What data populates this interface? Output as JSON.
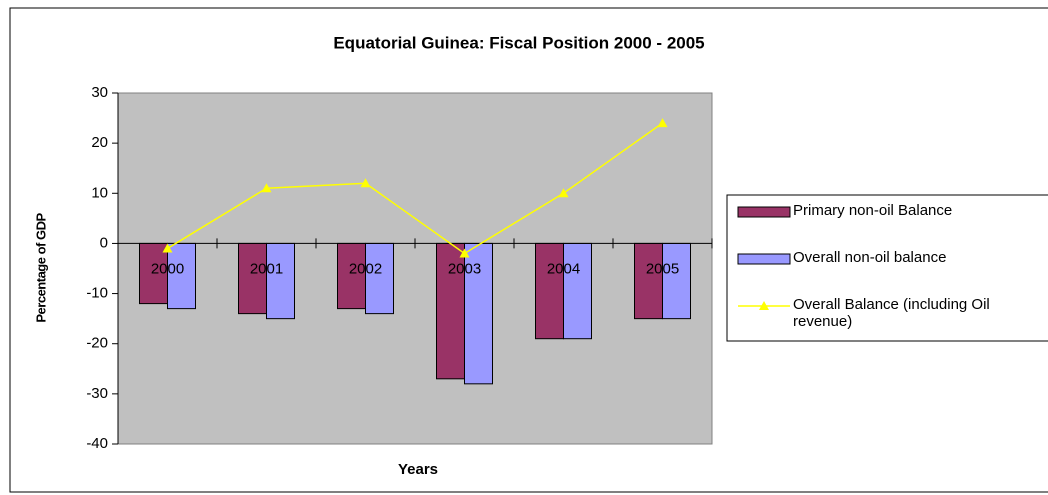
{
  "chart_data": {
    "type": "bar_line",
    "title": "Equatorial Guinea: Fiscal Position 2000 - 2005",
    "x_label": "Years",
    "y_label": "Percentage of GDP",
    "categories": [
      "2000",
      "2001",
      "2002",
      "2003",
      "2004",
      "2005"
    ],
    "series": [
      {
        "name": "Primary non-oil Balance",
        "type": "bar",
        "color": "#993366",
        "values": [
          -12,
          -14,
          -13,
          -27,
          -19,
          -15
        ]
      },
      {
        "name": "Overall non-oil balance",
        "type": "bar",
        "color": "#9999ff",
        "values": [
          -13,
          -15,
          -14,
          -28,
          -19,
          -15
        ]
      },
      {
        "name": "Overall Balance (including Oil revenue)",
        "type": "line",
        "color": "#ffff00",
        "values": [
          -1,
          11,
          12,
          -2,
          10,
          24
        ]
      }
    ],
    "ylim": [
      -40,
      30
    ],
    "yticks": [
      -40,
      -30,
      -20,
      -10,
      0,
      10,
      20,
      30
    ],
    "plot_background": "#c0c0c0"
  }
}
